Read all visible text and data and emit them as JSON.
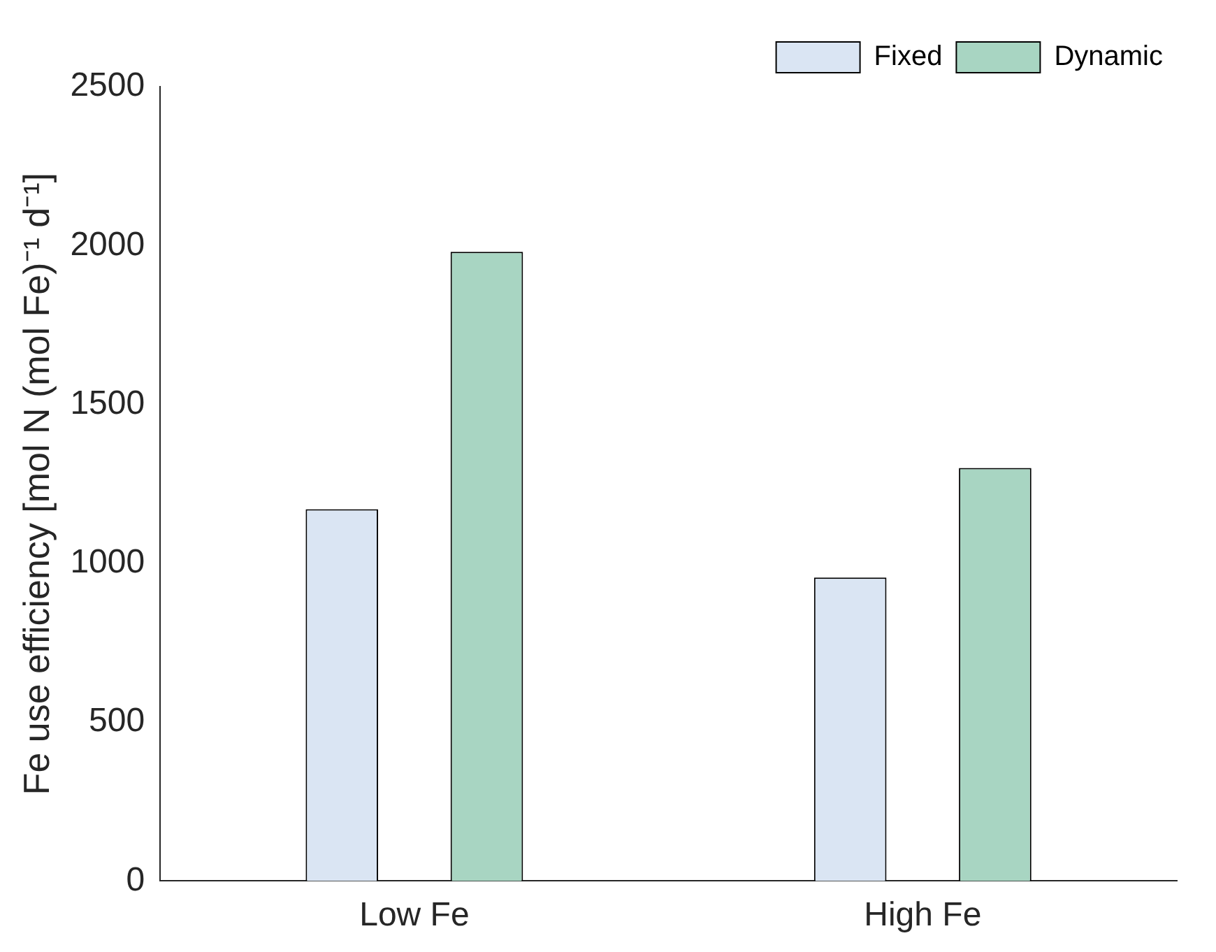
{
  "chart_data": {
    "type": "bar",
    "ylabel": "Fe use efficiency [mol N (mol Fe)⁻¹ d⁻¹]",
    "categories": [
      "Low Fe",
      "High Fe"
    ],
    "series": [
      {
        "name": "Fixed",
        "color": "#dae5f3",
        "values": [
          1170,
          955
        ]
      },
      {
        "name": "Dynamic",
        "color": "#a8d5c2",
        "values": [
          1980,
          1300
        ]
      }
    ],
    "ylim": [
      0,
      2500
    ],
    "yticks": [
      0,
      500,
      1000,
      1500,
      2000,
      2500
    ],
    "grid": false,
    "legend": "top right"
  }
}
